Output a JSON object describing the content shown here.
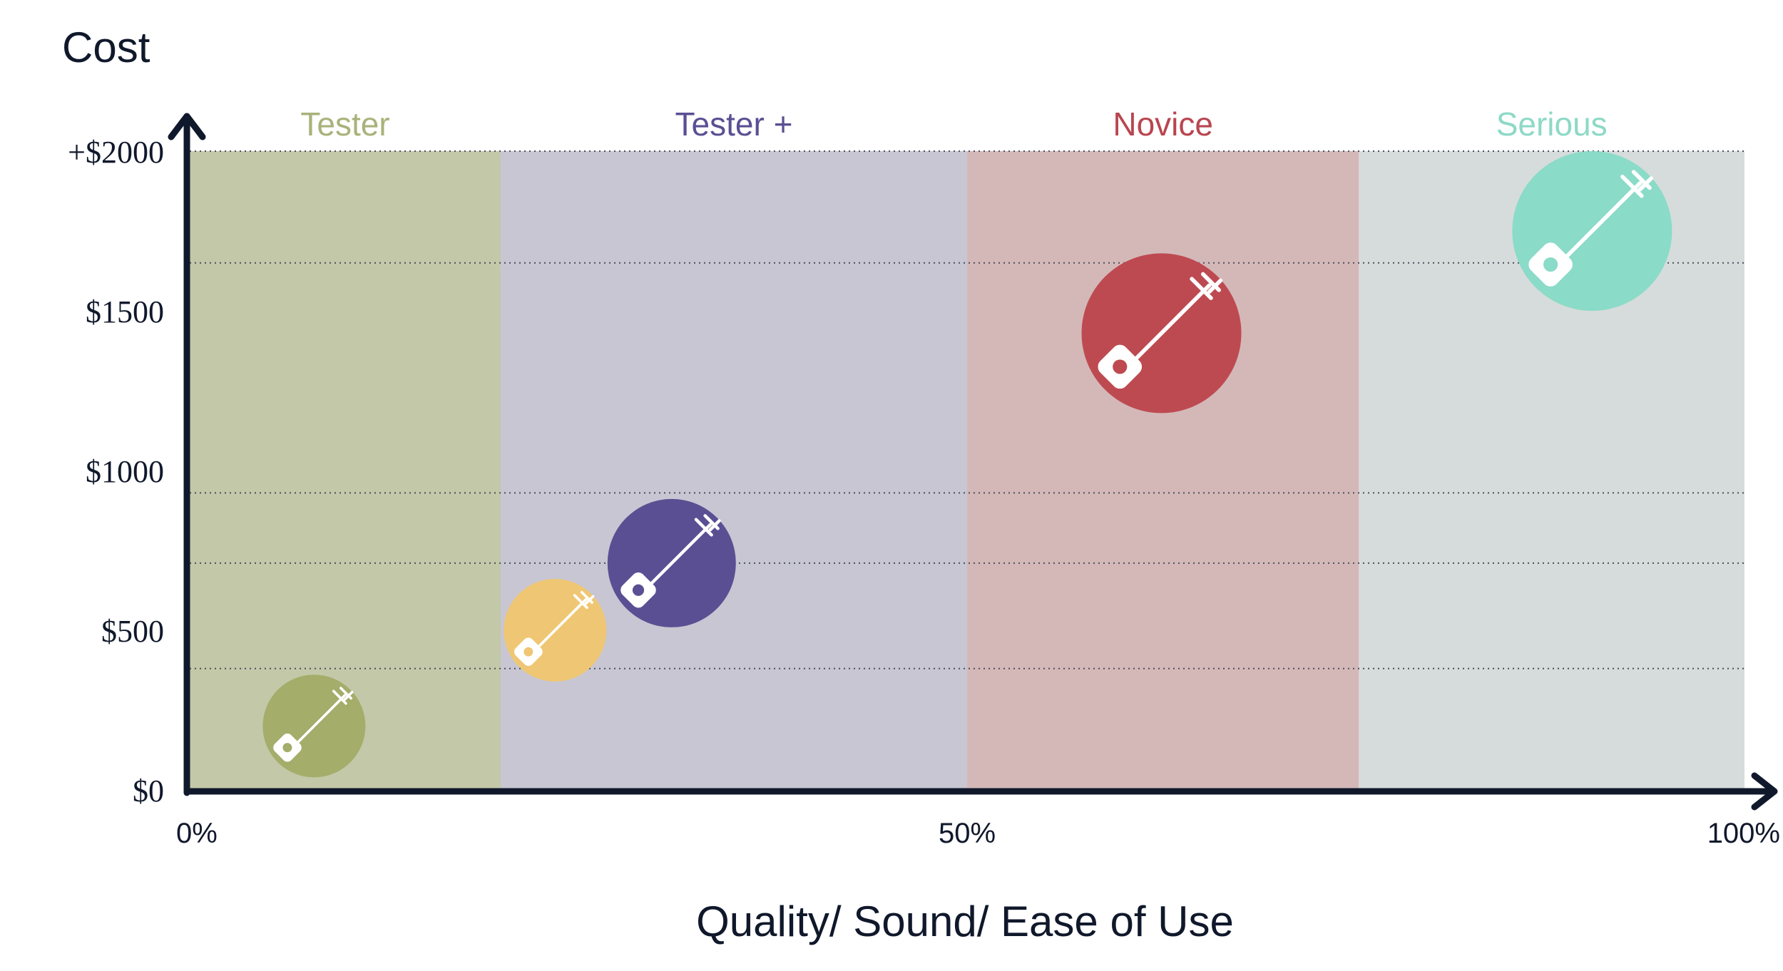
{
  "chart_data": {
    "type": "scatter",
    "ylabel": "Cost",
    "xlabel": "Quality/ Sound/ Ease of Use",
    "x_ticks": [
      {
        "value": 0,
        "label": "0%"
      },
      {
        "value": 50,
        "label": "50%"
      },
      {
        "value": 100,
        "label": "100%"
      }
    ],
    "y_ticks": [
      {
        "value": 0,
        "label": "$0"
      },
      {
        "value": 500,
        "label": "$500"
      },
      {
        "value": 1000,
        "label": "$1000"
      },
      {
        "value": 1500,
        "label": "$1500"
      },
      {
        "value": 2000,
        "label": "+$2000"
      }
    ],
    "xlim": [
      0,
      100
    ],
    "ylim": [
      0,
      2000
    ],
    "grid_y_values": [
      380,
      710,
      930,
      1650,
      2000
    ],
    "bands": [
      {
        "label": "Tester",
        "x_start": 0,
        "x_end": 20,
        "fill": "#c3c8a8",
        "label_color": "#a9b27a"
      },
      {
        "label": "Tester +",
        "x_start": 20,
        "x_end": 50,
        "fill": "#c7c6d2",
        "label_color": "#5a4f93"
      },
      {
        "label": "Novice",
        "x_start": 50,
        "x_end": 75.2,
        "fill": "#d4b8b8",
        "label_color": "#b8464f"
      },
      {
        "label": "Serious",
        "x_start": 75.2,
        "x_end": 100,
        "fill": "#d6dcdb",
        "label_color": "#8dd9c6"
      }
    ],
    "points": [
      {
        "x": 8,
        "y": 200,
        "color": "#a4ad6a",
        "size": "small",
        "icon": "shamisen-icon"
      },
      {
        "x": 23.5,
        "y": 500,
        "color": "#efc774",
        "size": "small",
        "icon": "shamisen-icon"
      },
      {
        "x": 31,
        "y": 710,
        "color": "#5a4f93",
        "size": "medium",
        "icon": "shamisen-icon"
      },
      {
        "x": 62.5,
        "y": 1430,
        "color": "#be4a51",
        "size": "large",
        "icon": "shamisen-icon"
      },
      {
        "x": 90.2,
        "y": 1750,
        "color": "#8adbc8",
        "size": "large",
        "icon": "shamisen-icon"
      }
    ],
    "axis_color": "#10182b",
    "grid": true
  }
}
